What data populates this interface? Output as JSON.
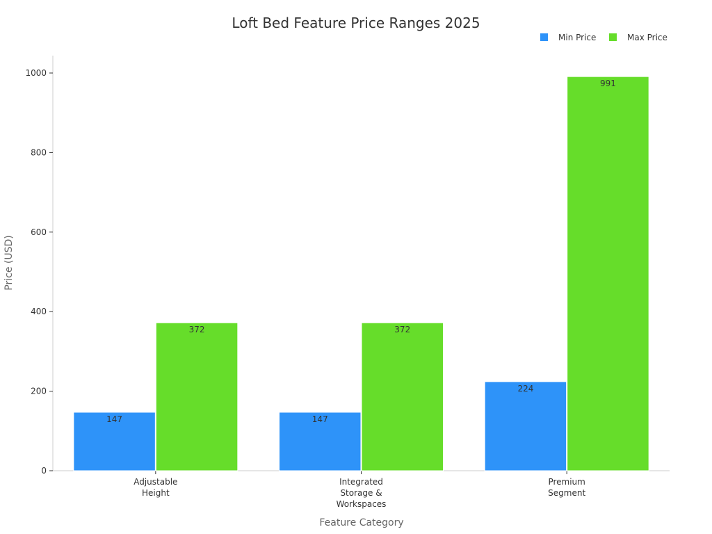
{
  "chart_data": {
    "type": "bar",
    "title": "Loft Bed Feature Price Ranges 2025",
    "xlabel": "Feature Category",
    "ylabel": "Price (USD)",
    "ylim": [
      0,
      1000
    ],
    "yticks": [
      0,
      200,
      400,
      600,
      800,
      1000
    ],
    "categories": [
      [
        "Adjustable",
        "Height"
      ],
      [
        "Integrated",
        "Storage &",
        "Workspaces"
      ],
      [
        "Premium",
        "Segment"
      ]
    ],
    "series": [
      {
        "name": "Min Price",
        "color": "#2E93F9",
        "values": [
          147,
          147,
          224
        ]
      },
      {
        "name": "Max Price",
        "color": "#66DD2A",
        "values": [
          372,
          372,
          991
        ]
      }
    ],
    "legend": "top-right",
    "grid": false
  }
}
